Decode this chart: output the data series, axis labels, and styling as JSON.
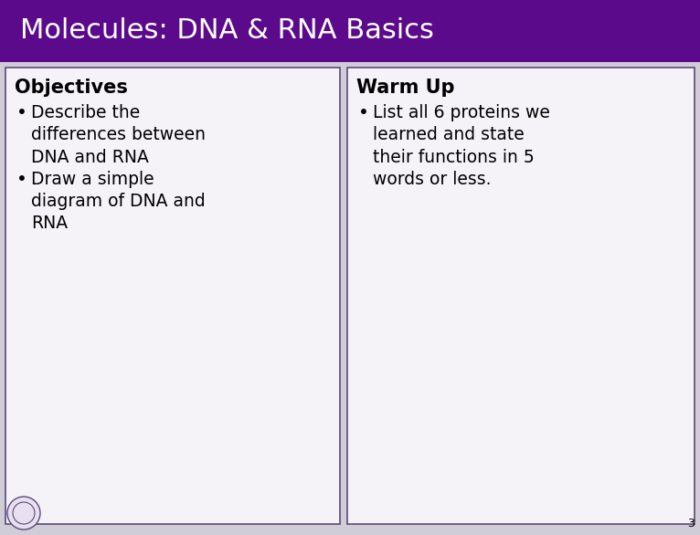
{
  "title": "Molecules: DNA & RNA Basics",
  "title_bg_color": "#5c0a8c",
  "title_text_color": "#ffffff",
  "slide_bg_color": "#d0ccd8",
  "border_color": "#5c4a7a",
  "left_panel_title": "Objectives",
  "left_panel_bullets": [
    "Describe the\ndifferences between\nDNA and RNA",
    "Draw a simple\ndiagram of DNA and\nRNA"
  ],
  "right_panel_title": "Warm Up",
  "right_panel_bullets": [
    "List all 6 proteins we\nlearned and state\ntheir functions in 5\nwords or less."
  ],
  "page_number": "3",
  "panel_bg_color": "#f5f3f8",
  "text_color": "#000000",
  "title_fontsize": 22,
  "header_fontsize": 15,
  "body_fontsize": 13.5
}
